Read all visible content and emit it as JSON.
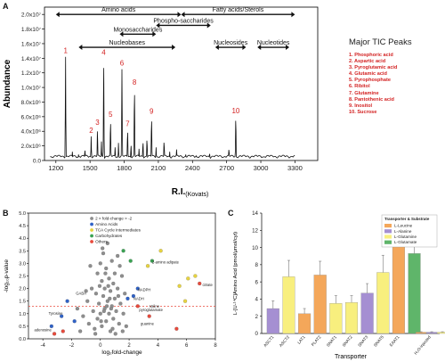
{
  "panel_letters": {
    "a": "A",
    "b": "B",
    "c": "C"
  },
  "chart_data": [
    {
      "type": "line",
      "panel": "A",
      "xlabel": "R.I.",
      "xlabel_sub": "(Kovats)",
      "ylabel": "Abundance",
      "xlim": [
        1100,
        3500
      ],
      "ylim": [
        0,
        21000000
      ],
      "x_ticks": [
        1200,
        1500,
        1800,
        2100,
        2400,
        2700,
        3000,
        3300
      ],
      "y_ticks": [
        {
          "value": 0,
          "label": "0.0"
        },
        {
          "value": 2000000,
          "label": "2.0x10⁶"
        },
        {
          "value": 4000000,
          "label": "4.0x10⁶"
        },
        {
          "value": 6000000,
          "label": "6.0x10⁶"
        },
        {
          "value": 8000000,
          "label": "8.0x10⁶"
        },
        {
          "value": 10000000,
          "label": "1.0x10⁷"
        },
        {
          "value": 12000000,
          "label": "1.2x10⁷"
        },
        {
          "value": 14000000,
          "label": "1.4x10⁷"
        },
        {
          "value": 16000000,
          "label": "1.6x10⁷"
        },
        {
          "value": 18000000,
          "label": "1.8x10⁷"
        },
        {
          "value": 20000000,
          "label": "2.0x10⁷"
        }
      ],
      "peaks": [
        {
          "x": 1285,
          "y": 14200000,
          "label": "1"
        },
        {
          "x": 1510,
          "y": 3300000,
          "label": "2"
        },
        {
          "x": 1565,
          "y": 4400000,
          "label": "3"
        },
        {
          "x": 1620,
          "y": 14000000,
          "label": "4"
        },
        {
          "x": 1680,
          "y": 5500000,
          "label": "5"
        },
        {
          "x": 1780,
          "y": 12500000,
          "label": "6"
        },
        {
          "x": 1830,
          "y": 4200000,
          "label": "7"
        },
        {
          "x": 1890,
          "y": 9900000,
          "label": "8"
        },
        {
          "x": 2040,
          "y": 5900000,
          "label": "9"
        },
        {
          "x": 2780,
          "y": 6000000,
          "label": "10"
        }
      ],
      "minor_peaks": [
        {
          "x": 1225,
          "y": 700000
        },
        {
          "x": 1345,
          "y": 1200000
        },
        {
          "x": 1400,
          "y": 900000
        },
        {
          "x": 1455,
          "y": 1500000
        },
        {
          "x": 1600,
          "y": 2600000
        },
        {
          "x": 1720,
          "y": 1800000
        },
        {
          "x": 1750,
          "y": 2400000
        },
        {
          "x": 1860,
          "y": 2200000
        },
        {
          "x": 1930,
          "y": 1600000
        },
        {
          "x": 1965,
          "y": 2600000
        },
        {
          "x": 2000,
          "y": 3000000
        },
        {
          "x": 2080,
          "y": 1800000
        },
        {
          "x": 2150,
          "y": 2700000
        },
        {
          "x": 2200,
          "y": 1200000
        },
        {
          "x": 2260,
          "y": 1500000
        },
        {
          "x": 2340,
          "y": 900000
        },
        {
          "x": 2430,
          "y": 700000
        },
        {
          "x": 2550,
          "y": 1000000
        },
        {
          "x": 2650,
          "y": 600000
        },
        {
          "x": 2720,
          "y": 1600000
        },
        {
          "x": 2880,
          "y": 500000
        },
        {
          "x": 3050,
          "y": 400000
        }
      ],
      "ranges": [
        {
          "label": "Amino acids",
          "x1": 1200,
          "x2": 2300,
          "y": 20000000
        },
        {
          "label": "Fatty acids/Sterols",
          "x1": 2300,
          "x2": 3300,
          "y": 20000000
        },
        {
          "label": "Monosaccharides",
          "x1": 1760,
          "x2": 2080,
          "y": 17300000
        },
        {
          "label": "Phospho-saccharides",
          "x1": 2080,
          "x2": 2560,
          "y": 18500000
        },
        {
          "label": "Nucleobases",
          "x1": 1400,
          "x2": 2250,
          "y": 15500000
        },
        {
          "label": "Nucleosides",
          "x1": 2600,
          "x2": 2870,
          "y": 15500000
        },
        {
          "label": "Nucleotides",
          "x1": 2970,
          "x2": 3250,
          "y": 15500000
        }
      ],
      "legend_title": "Major TIC Peaks",
      "legend_items": [
        "1. Phosphoric acid",
        "2. Aspartic acid",
        "3. Pyroglutamic acid",
        "4. Glutamic acid",
        "5. Pyrophosphate",
        "6. Ribitol",
        "7. Glutamine",
        "8. Pantothenic acid",
        "9. Inositol",
        "10. Sucrose"
      ]
    },
    {
      "type": "scatter",
      "panel": "B",
      "xlabel": "log₂fold-change",
      "ylabel": "-log₁₀p-value",
      "xlim": [
        -5,
        8
      ],
      "ylim": [
        0,
        5
      ],
      "x_ticks": [
        -4,
        -2,
        0,
        2,
        4,
        6,
        8
      ],
      "y_ticks": [
        0,
        0.5,
        1.0,
        1.5,
        2.0,
        2.5,
        3.0,
        3.5,
        4.0,
        4.5,
        5.0
      ],
      "threshold_y": 1.3,
      "legend": [
        {
          "name": "2 > fold-change > -2",
          "color": "#8e8e8e"
        },
        {
          "name": "Amino Acids",
          "color": "#2f62c8"
        },
        {
          "name": "TCA Cycle Intermediates",
          "color": "#e8d440"
        },
        {
          "name": "Carbohydrates",
          "color": "#3aa353"
        },
        {
          "name": "Others",
          "color": "#e84a3c"
        }
      ],
      "series": [
        {
          "name": "2 > fold-change > -2",
          "color": "#8e8e8e",
          "points": [
            [
              -1.6,
              1.2
            ],
            [
              -1.2,
              0.9
            ],
            [
              -0.9,
              1.5
            ],
            [
              -0.8,
              0.6
            ],
            [
              -0.6,
              2.0
            ],
            [
              -0.5,
              1.1
            ],
            [
              -0.4,
              0.4
            ],
            [
              -0.3,
              1.8
            ],
            [
              -0.2,
              2.6
            ],
            [
              -0.2,
              0.8
            ],
            [
              -0.1,
              1.4
            ],
            [
              0.0,
              3.0
            ],
            [
              0.0,
              1.0
            ],
            [
              0.1,
              2.3
            ],
            [
              0.1,
              0.5
            ],
            [
              0.2,
              1.7
            ],
            [
              0.2,
              3.4
            ],
            [
              0.3,
              1.2
            ],
            [
              0.3,
              2.0
            ],
            [
              0.4,
              0.7
            ],
            [
              0.4,
              2.8
            ],
            [
              0.5,
              1.5
            ],
            [
              0.5,
              3.8
            ],
            [
              0.6,
              1.0
            ],
            [
              0.6,
              2.4
            ],
            [
              0.7,
              1.9
            ],
            [
              0.7,
              0.3
            ],
            [
              0.8,
              3.1
            ],
            [
              0.8,
              1.3
            ],
            [
              0.9,
              2.2
            ],
            [
              0.9,
              0.8
            ],
            [
              1.0,
              1.6
            ],
            [
              1.0,
              2.6
            ],
            [
              1.1,
              1.1
            ],
            [
              1.2,
              2.0
            ],
            [
              1.2,
              3.3
            ],
            [
              1.3,
              0.6
            ],
            [
              1.4,
              1.4
            ],
            [
              1.5,
              2.5
            ],
            [
              1.6,
              1.0
            ],
            [
              1.7,
              1.8
            ],
            [
              1.8,
              0.5
            ],
            [
              -1.4,
              0.3
            ],
            [
              -0.7,
              2.9
            ],
            [
              0.15,
              3.6
            ],
            [
              0.45,
              1.3
            ],
            [
              0.65,
              1.6
            ],
            [
              0.85,
              0.4
            ],
            [
              1.35,
              2.9
            ],
            [
              -0.35,
              0.2
            ],
            [
              0.05,
              0.7
            ],
            [
              0.25,
              1.1
            ],
            [
              0.55,
              2.1
            ],
            [
              0.75,
              1.2
            ],
            [
              1.05,
              0.2
            ],
            [
              1.55,
              0.3
            ],
            [
              -1.0,
              1.9
            ],
            [
              -0.05,
              2.1
            ],
            [
              0.35,
              2.6
            ],
            [
              1.25,
              1.7
            ]
          ]
        },
        {
          "name": "Amino Acids",
          "color": "#2f62c8",
          "points": [
            [
              -3.4,
              0.5
            ],
            [
              -2.7,
              0.9
            ],
            [
              -2.3,
              1.5
            ],
            [
              -1.8,
              0.7
            ],
            [
              1.9,
              1.6
            ],
            [
              2.3,
              1.7
            ],
            [
              2.6,
              2.0
            ]
          ]
        },
        {
          "name": "TCA Cycle Intermediates",
          "color": "#e8d440",
          "points": [
            [
              3.3,
              2.9
            ],
            [
              4.2,
              3.5
            ],
            [
              5.5,
              2.1
            ],
            [
              5.9,
              1.5
            ],
            [
              6.1,
              2.4
            ],
            [
              6.6,
              2.5
            ]
          ]
        },
        {
          "name": "Carbohydrates",
          "color": "#3aa353",
          "points": [
            [
              1.6,
              3.5
            ],
            [
              2.1,
              3.1
            ],
            [
              3.6,
              3.1
            ]
          ]
        },
        {
          "name": "Others",
          "color": "#e84a3c",
          "points": [
            [
              -3.2,
              0.2
            ],
            [
              -2.6,
              0.3
            ],
            [
              3.4,
              0.9
            ],
            [
              6.9,
              2.2
            ],
            [
              5.3,
              0.4
            ],
            [
              2.6,
              1.3
            ]
          ]
        }
      ],
      "annotations": [
        {
          "text": "2-amino adipate",
          "x": 3.6,
          "y": 3.0
        },
        {
          "text": "GABA",
          "x": -1.7,
          "y": 1.75
        },
        {
          "text": "NADPH",
          "x": 2.6,
          "y": 1.9
        },
        {
          "text": "NADH",
          "x": 2.3,
          "y": 1.55
        },
        {
          "text": "Valine",
          "x": 3.4,
          "y": 1.25
        },
        {
          "text": "pyroglutamate",
          "x": 2.7,
          "y": 1.1
        },
        {
          "text": "guanine",
          "x": 2.8,
          "y": 0.55
        },
        {
          "text": "Tyrosine",
          "x": -3.6,
          "y": 0.95
        },
        {
          "text": "citrate",
          "x": 7.1,
          "y": 2.1
        },
        {
          "text": "adenosine",
          "x": -4.6,
          "y": 0.3
        }
      ]
    },
    {
      "type": "bar",
      "panel": "C",
      "xlabel": "Transporter",
      "ylabel": "L-[U-¹⁴C]Amino Acid (pmol/μmol/cyt)",
      "ylim": [
        0,
        14
      ],
      "y_ticks": [
        0,
        2,
        4,
        6,
        8,
        10,
        12,
        14
      ],
      "legend_title": "Transporter & Substrate",
      "legend": [
        {
          "name": "L-Leucine",
          "color": "#f4a75a"
        },
        {
          "name": "L-Alanine",
          "color": "#a58fd2"
        },
        {
          "name": "L-Glutamine",
          "color": "#f8ef7e"
        },
        {
          "name": "L-Glutamate",
          "color": "#5fb56a"
        }
      ],
      "categories": [
        "ASCT1",
        "ASCT2",
        "LAT1",
        "PLAT2",
        "SNAT1",
        "SNAT2",
        "SNAT3",
        "SNAT5",
        "EAAT1",
        "EAAT3",
        "H₂O-injected"
      ],
      "tick_labels": [
        "ASCT1",
        "ASCT2",
        "LAT1",
        "PLAT2",
        "SNAT1",
        "SNAT2",
        "SNAT3",
        "SNAT5",
        "EAAT1",
        "",
        "H₂O-injected"
      ],
      "bars": [
        {
          "category": "ASCT1",
          "substrate": "L-Alanine",
          "value": 2.9,
          "error": 0.9
        },
        {
          "category": "ASCT2",
          "substrate": "L-Glutamine",
          "value": 6.6,
          "error": 1.9
        },
        {
          "category": "LAT1",
          "substrate": "L-Leucine",
          "value": 2.3,
          "error": 0.6
        },
        {
          "category": "PLAT2",
          "substrate": "L-Leucine",
          "value": 6.8,
          "error": 1.6
        },
        {
          "category": "SNAT1",
          "substrate": "L-Glutamine",
          "value": 3.5,
          "error": 0.9
        },
        {
          "category": "SNAT2",
          "substrate": "L-Glutamine",
          "value": 3.6,
          "error": 0.8
        },
        {
          "category": "SNAT3",
          "substrate": "L-Alanine",
          "value": 4.7,
          "error": 1.1
        },
        {
          "category": "SNAT5",
          "substrate": "L-Glutamine",
          "value": 7.1,
          "error": 2.0
        },
        {
          "category": "EAAT1",
          "substrate": "L-Leucine",
          "value": 12.0,
          "error": 1.6
        },
        {
          "category": "EAAT3",
          "substrate": "L-Glutamate",
          "value": 9.3,
          "error": 1.1
        },
        {
          "category": "H₂O-injected",
          "substrate": "L-Leucine",
          "value": 0.15,
          "error": 0.05
        },
        {
          "category": "H₂O-injected",
          "substrate": "L-Alanine",
          "value": 0.15,
          "error": 0.05
        },
        {
          "category": "H₂O-injected",
          "substrate": "L-Glutamine",
          "value": 0.15,
          "error": 0.05
        },
        {
          "category": "H₂O-injected",
          "substrate": "L-Glutamate",
          "value": 0.15,
          "error": 0.05
        }
      ]
    }
  ]
}
